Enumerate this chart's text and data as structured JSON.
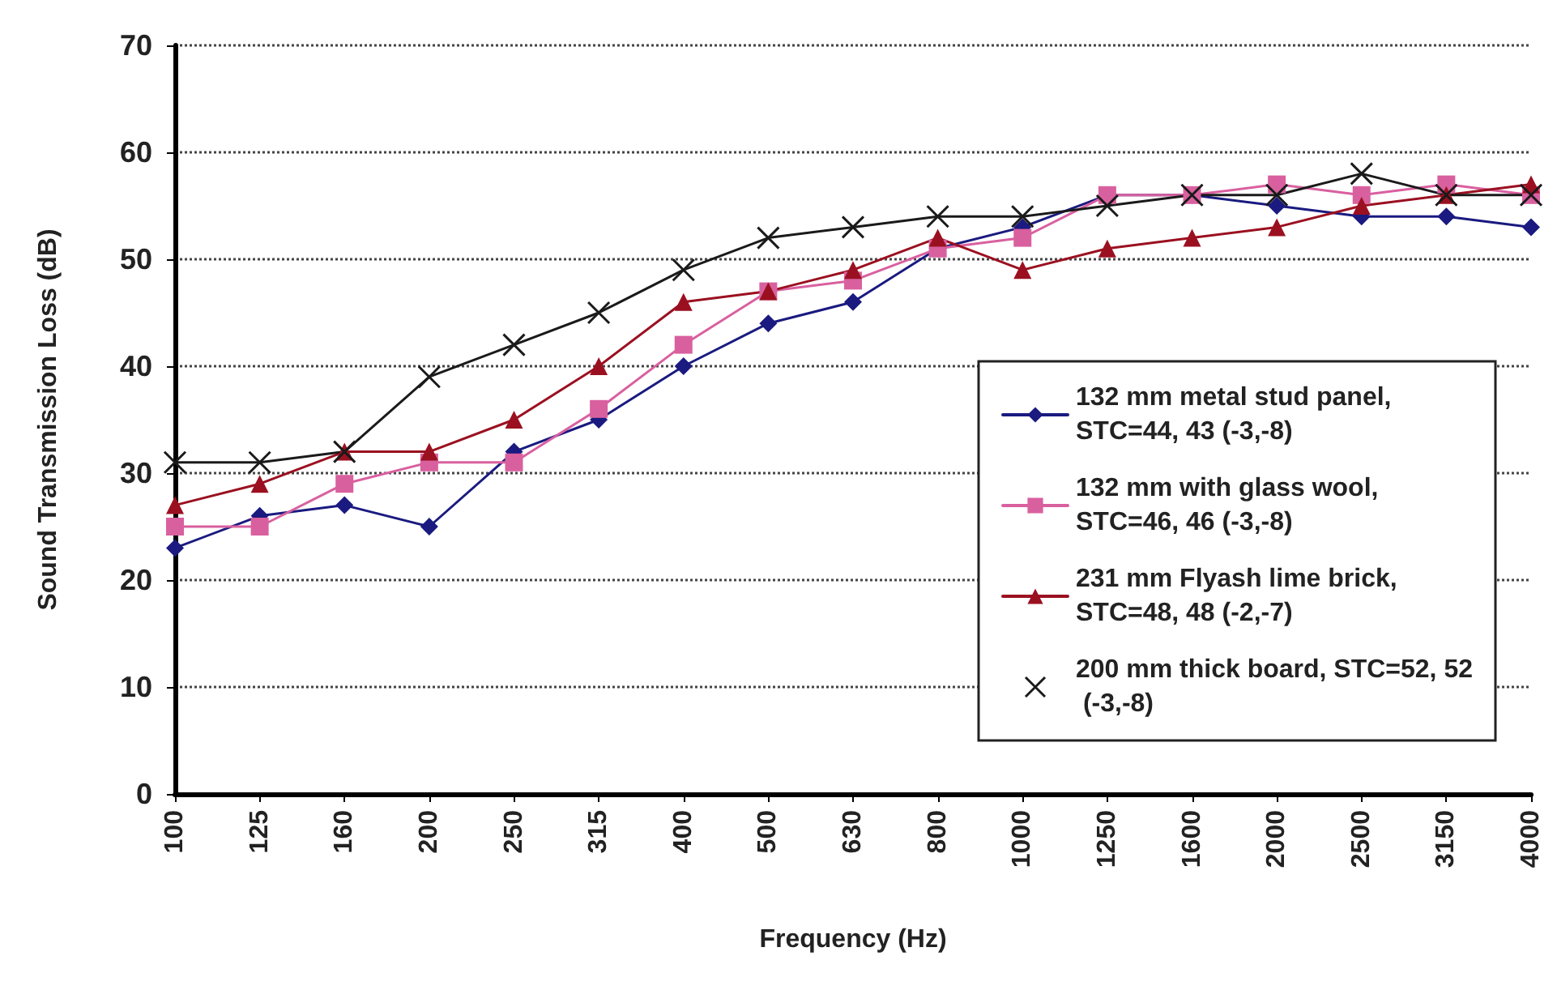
{
  "chart_data": {
    "type": "line",
    "xlabel": "Frequency (Hz)",
    "ylabel": "Sound Transmission Loss (dB)",
    "categories": [
      "100",
      "125",
      "160",
      "200",
      "250",
      "315",
      "400",
      "500",
      "630",
      "800",
      "1000",
      "1250",
      "1600",
      "2000",
      "2500",
      "3150",
      "4000"
    ],
    "series": [
      {
        "name": "132 mm metal stud panel, STC=44, 43 (-3,-8)",
        "color": "#1a1a80",
        "marker": "diamond",
        "values": [
          23,
          26,
          27,
          25,
          32,
          35,
          40,
          44,
          46,
          51,
          53,
          56,
          56,
          55,
          54,
          54,
          53
        ]
      },
      {
        "name": "132 mm with glass wool, STC=46, 46 (-3,-8)",
        "color": "#d9609f",
        "marker": "square",
        "values": [
          25,
          25,
          29,
          31,
          31,
          36,
          42,
          47,
          48,
          51,
          52,
          56,
          56,
          57,
          56,
          57,
          56
        ]
      },
      {
        "name": "231 mm Flyash lime brick, STC=48, 48 (-2,-7)",
        "color": "#9b1020",
        "marker": "triangle",
        "values": [
          27,
          29,
          32,
          32,
          35,
          40,
          46,
          47,
          49,
          52,
          49,
          51,
          52,
          53,
          55,
          56,
          57
        ]
      },
      {
        "name": "200 mm thick board, STC=52, 52 (-3,-8)",
        "color": "#1a1a1a",
        "marker": "cross",
        "values": [
          31,
          31,
          32,
          39,
          42,
          45,
          49,
          52,
          53,
          54,
          54,
          55,
          56,
          56,
          58,
          56,
          56
        ]
      }
    ],
    "ylim": [
      0,
      70
    ],
    "yticks": [
      0,
      10,
      20,
      30,
      40,
      50,
      60,
      70
    ],
    "grid": "y",
    "legend": "right"
  }
}
